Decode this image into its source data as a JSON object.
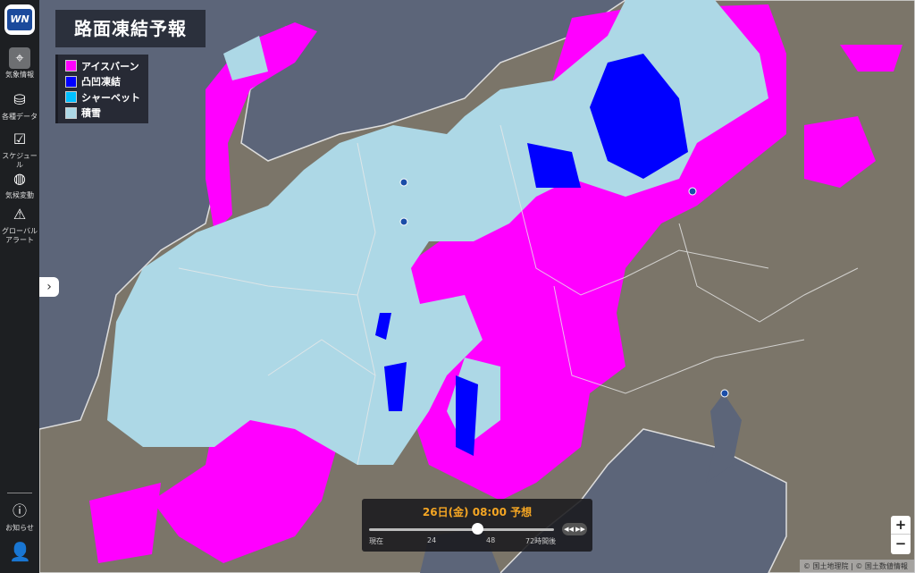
{
  "sidebar": {
    "logo_text": "WN",
    "items": [
      {
        "label": "気象情報",
        "icon": "map-pin-icon",
        "active": true
      },
      {
        "label": "各種データ",
        "icon": "database-icon"
      },
      {
        "label": "スケジュール",
        "icon": "calendar-check-icon"
      },
      {
        "label": "気候変動",
        "icon": "globe-icon"
      },
      {
        "label": "グローバル\nアラート",
        "icon": "globe-alert-icon"
      }
    ],
    "notice_label": "お知らせ",
    "account_icon": "user-menu-icon"
  },
  "title": "路面凍結予報",
  "legend": [
    {
      "label": "アイスバーン",
      "color": "#ff00ff"
    },
    {
      "label": "凸凹凍結",
      "color": "#0000ff"
    },
    {
      "label": "シャーベット",
      "color": "#00bfff"
    },
    {
      "label": "積雪",
      "color": "#add8e6"
    }
  ],
  "timeline": {
    "current_time": "26日(金) 08:00 予想",
    "ticks": [
      "現在",
      "24",
      "48",
      "72時間後"
    ],
    "slider_value_hours": 42,
    "slider_max_hours": 72
  },
  "zoom": {
    "in": "+",
    "out": "−"
  },
  "attribution": "© 国土地理院 | © 国土数値情報",
  "colors": {
    "sea": "#5c6579",
    "land": "#7b7569",
    "snow": "#add8e6",
    "ice": "#ff00ff",
    "bumpy": "#0000ff"
  }
}
